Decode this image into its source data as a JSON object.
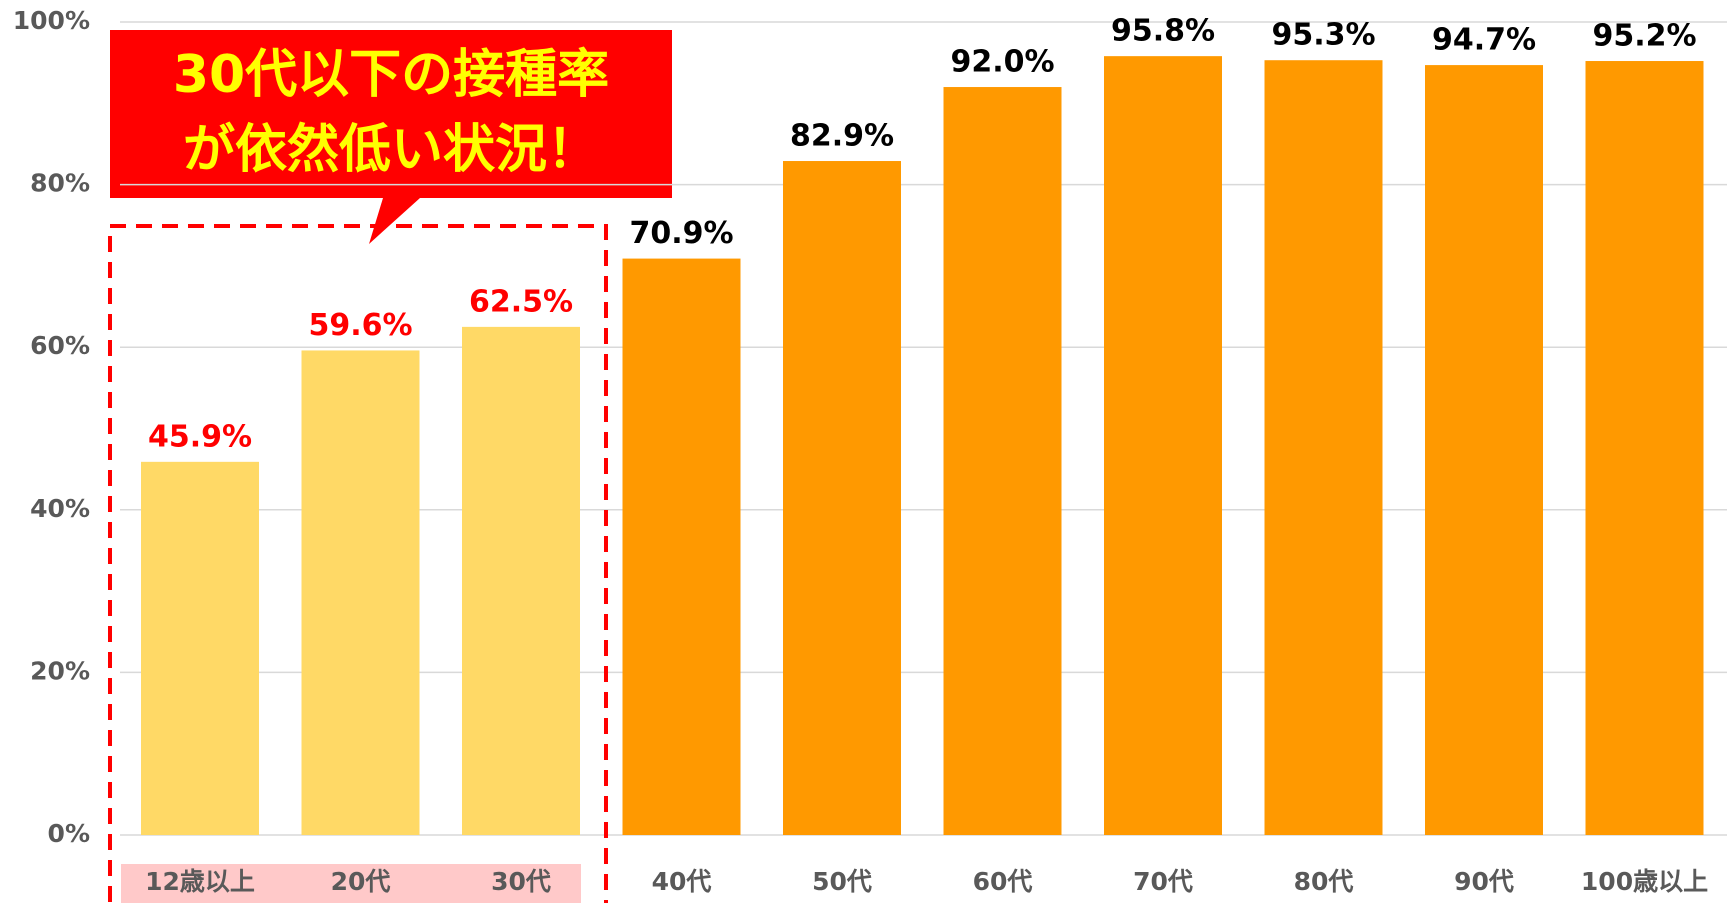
{
  "chart_data": {
    "type": "bar",
    "categories": [
      "12歳以上",
      "20代",
      "30代",
      "40代",
      "50代",
      "60代",
      "70代",
      "80代",
      "90代",
      "100歳以上"
    ],
    "values": [
      45.9,
      59.6,
      62.5,
      70.9,
      82.9,
      92.0,
      95.8,
      95.3,
      94.7,
      95.2
    ],
    "value_labels": [
      "45.9%",
      "59.6%",
      "62.5%",
      "70.9%",
      "82.9%",
      "92.0%",
      "95.8%",
      "95.3%",
      "94.7%",
      "95.2%"
    ],
    "colors": [
      "#ffd966",
      "#ffd966",
      "#ffd966",
      "#ff9900",
      "#ff9900",
      "#ff9900",
      "#ff9900",
      "#ff9900",
      "#ff9900",
      "#ff9900"
    ],
    "value_label_colors": [
      "#ff0000",
      "#ff0000",
      "#ff0000",
      "#000000",
      "#000000",
      "#000000",
      "#000000",
      "#000000",
      "#000000",
      "#000000"
    ],
    "ylim": [
      0,
      100
    ],
    "yticks": [
      {
        "value": 0,
        "label": "0%"
      },
      {
        "value": 20,
        "label": "20%"
      },
      {
        "value": 40,
        "label": "40%"
      },
      {
        "value": 60,
        "label": "60%"
      },
      {
        "value": 80,
        "label": "80%"
      },
      {
        "value": 100,
        "label": "100%"
      }
    ],
    "grid": true,
    "annotation": [
      "30代以下の接種率",
      "が依然低い状況！"
    ]
  }
}
